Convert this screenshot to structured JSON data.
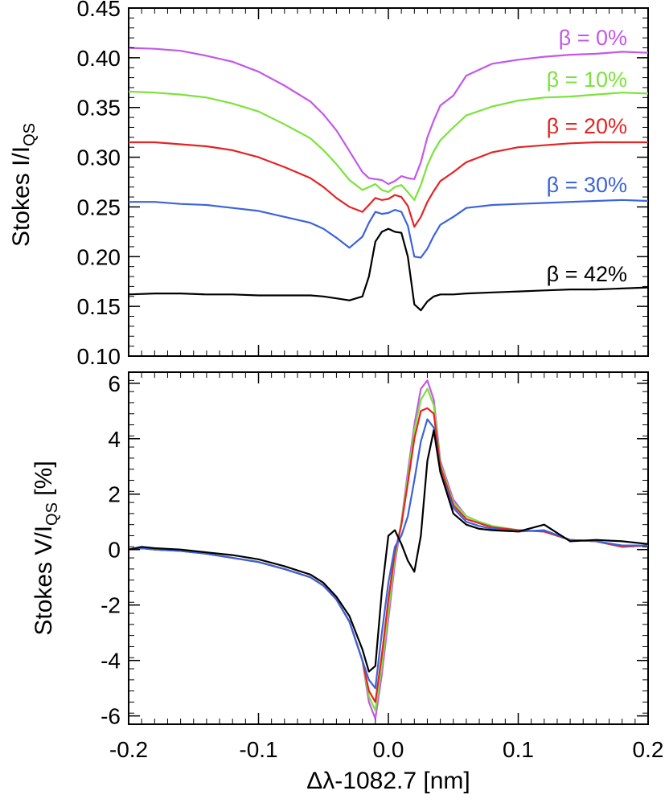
{
  "chart_data": [
    {
      "type": "line",
      "panel": "top",
      "ylabel_main": "Stokes I/I",
      "ylabel_sub": "QS",
      "ylim": [
        0.1,
        0.45
      ],
      "xlim": [
        -0.2,
        0.2
      ],
      "yticks": [
        "0.10",
        "0.15",
        "0.20",
        "0.25",
        "0.30",
        "0.35",
        "0.40",
        "0.45"
      ],
      "yticks_values": [
        0.1,
        0.15,
        0.2,
        0.25,
        0.3,
        0.35,
        0.4,
        0.45
      ],
      "x": [
        -0.2,
        -0.18,
        -0.16,
        -0.14,
        -0.12,
        -0.1,
        -0.08,
        -0.06,
        -0.05,
        -0.04,
        -0.03,
        -0.02,
        -0.015,
        -0.01,
        -0.005,
        0.0,
        0.005,
        0.01,
        0.015,
        0.02,
        0.025,
        0.03,
        0.035,
        0.04,
        0.05,
        0.06,
        0.08,
        0.1,
        0.12,
        0.14,
        0.16,
        0.18,
        0.2
      ],
      "series": [
        {
          "name": "β = 0%",
          "color": "#c457e8",
          "values": [
            0.41,
            0.409,
            0.407,
            0.402,
            0.396,
            0.386,
            0.372,
            0.356,
            0.343,
            0.327,
            0.306,
            0.285,
            0.279,
            0.278,
            0.277,
            0.273,
            0.276,
            0.281,
            0.279,
            0.278,
            0.295,
            0.32,
            0.337,
            0.352,
            0.362,
            0.382,
            0.394,
            0.398,
            0.401,
            0.403,
            0.404,
            0.406,
            0.405
          ]
        },
        {
          "name": "β = 10%",
          "color": "#7be33a",
          "values": [
            0.366,
            0.365,
            0.363,
            0.36,
            0.354,
            0.346,
            0.333,
            0.319,
            0.307,
            0.293,
            0.277,
            0.267,
            0.27,
            0.273,
            0.267,
            0.265,
            0.27,
            0.272,
            0.265,
            0.257,
            0.272,
            0.292,
            0.306,
            0.317,
            0.33,
            0.342,
            0.351,
            0.357,
            0.36,
            0.361,
            0.363,
            0.365,
            0.364
          ]
        },
        {
          "name": "β = 20%",
          "color": "#e52323",
          "values": [
            0.315,
            0.315,
            0.313,
            0.311,
            0.307,
            0.3,
            0.29,
            0.279,
            0.27,
            0.259,
            0.25,
            0.245,
            0.252,
            0.259,
            0.257,
            0.258,
            0.262,
            0.26,
            0.251,
            0.23,
            0.24,
            0.255,
            0.266,
            0.276,
            0.285,
            0.295,
            0.305,
            0.31,
            0.312,
            0.314,
            0.315,
            0.315,
            0.315
          ]
        },
        {
          "name": "β = 30%",
          "color": "#3b63dc",
          "values": [
            0.255,
            0.255,
            0.253,
            0.252,
            0.249,
            0.246,
            0.24,
            0.234,
            0.228,
            0.219,
            0.209,
            0.22,
            0.234,
            0.245,
            0.243,
            0.244,
            0.247,
            0.245,
            0.231,
            0.2,
            0.199,
            0.208,
            0.221,
            0.232,
            0.24,
            0.249,
            0.252,
            0.253,
            0.254,
            0.255,
            0.256,
            0.257,
            0.256
          ]
        },
        {
          "name": "β = 42%",
          "color": "#000000",
          "values": [
            0.162,
            0.163,
            0.163,
            0.162,
            0.162,
            0.161,
            0.161,
            0.161,
            0.16,
            0.158,
            0.156,
            0.16,
            0.18,
            0.215,
            0.225,
            0.228,
            0.225,
            0.224,
            0.2,
            0.152,
            0.146,
            0.155,
            0.16,
            0.162,
            0.162,
            0.163,
            0.164,
            0.165,
            0.166,
            0.167,
            0.167,
            0.168,
            0.169
          ]
        }
      ]
    },
    {
      "type": "line",
      "panel": "bottom",
      "ylabel_main": "Stokes V/I",
      "ylabel_sub": "QS",
      "ylabel_tail": " [%]",
      "ylim": [
        -6.3,
        6.4
      ],
      "xlim": [
        -0.2,
        0.2
      ],
      "yticks": [
        "6",
        "4",
        "2",
        "0",
        "-2",
        "-4",
        "-6"
      ],
      "yticks_values": [
        6,
        4,
        2,
        0,
        -2,
        -4,
        -6
      ],
      "xticks": [
        "-0.2",
        "-0.1",
        "0.0",
        "0.1",
        "0.2"
      ],
      "xticks_values": [
        -0.2,
        -0.1,
        0.0,
        0.1,
        0.2
      ],
      "xlabel": "Δλ-1082.7 [nm]",
      "x": [
        -0.2,
        -0.19,
        -0.18,
        -0.16,
        -0.14,
        -0.12,
        -0.1,
        -0.08,
        -0.06,
        -0.05,
        -0.04,
        -0.03,
        -0.02,
        -0.015,
        -0.01,
        -0.005,
        0.0,
        0.005,
        0.01,
        0.015,
        0.02,
        0.025,
        0.03,
        0.035,
        0.04,
        0.05,
        0.06,
        0.07,
        0.08,
        0.1,
        0.12,
        0.14,
        0.16,
        0.18,
        0.2
      ],
      "series": [
        {
          "name": "β = 0%",
          "color": "#c457e8",
          "values": [
            0.0,
            0.05,
            0.0,
            -0.05,
            -0.15,
            -0.3,
            -0.45,
            -0.7,
            -1.0,
            -1.3,
            -1.8,
            -2.6,
            -4.0,
            -5.5,
            -6.1,
            -4.5,
            -2.5,
            -0.5,
            1.0,
            2.8,
            4.5,
            5.8,
            6.1,
            5.4,
            3.2,
            1.8,
            1.2,
            1.0,
            0.85,
            0.7,
            0.65,
            0.35,
            0.3,
            0.1,
            0.15
          ]
        },
        {
          "name": "β = 10%",
          "color": "#7be33a",
          "values": [
            0.0,
            0.05,
            0.0,
            -0.05,
            -0.15,
            -0.3,
            -0.45,
            -0.7,
            -1.0,
            -1.3,
            -1.8,
            -2.6,
            -4.0,
            -5.3,
            -5.8,
            -4.2,
            -2.2,
            -0.3,
            1.0,
            2.6,
            4.3,
            5.4,
            5.8,
            5.2,
            3.1,
            1.7,
            1.2,
            1.0,
            0.85,
            0.7,
            0.65,
            0.35,
            0.3,
            0.1,
            0.15
          ]
        },
        {
          "name": "β = 20%",
          "color": "#e52323",
          "values": [
            0.0,
            0.05,
            0.0,
            -0.05,
            -0.15,
            -0.3,
            -0.45,
            -0.7,
            -1.0,
            -1.3,
            -1.8,
            -2.6,
            -4.0,
            -5.1,
            -5.5,
            -3.8,
            -1.8,
            -0.1,
            0.9,
            2.4,
            4.0,
            5.0,
            5.1,
            4.9,
            3.0,
            1.6,
            1.1,
            0.95,
            0.8,
            0.7,
            0.65,
            0.35,
            0.3,
            0.1,
            0.15
          ]
        },
        {
          "name": "β = 30%",
          "color": "#3b63dc",
          "values": [
            0.0,
            0.05,
            0.0,
            -0.05,
            -0.15,
            -0.3,
            -0.45,
            -0.7,
            -1.0,
            -1.3,
            -1.8,
            -2.6,
            -4.0,
            -4.7,
            -5.0,
            -3.0,
            -1.2,
            0.1,
            0.5,
            1.2,
            2.5,
            3.9,
            4.7,
            4.4,
            2.8,
            1.5,
            1.0,
            0.85,
            0.75,
            0.65,
            0.7,
            0.35,
            0.3,
            0.15,
            0.15
          ]
        },
        {
          "name": "β = 42%",
          "color": "#000000",
          "values": [
            0.0,
            0.1,
            0.05,
            0.0,
            -0.1,
            -0.2,
            -0.35,
            -0.6,
            -0.9,
            -1.2,
            -1.7,
            -2.4,
            -3.6,
            -4.4,
            -4.2,
            -1.5,
            0.5,
            0.7,
            0.2,
            -0.4,
            -0.8,
            0.5,
            3.2,
            4.3,
            2.8,
            1.3,
            0.9,
            0.75,
            0.7,
            0.65,
            0.9,
            0.3,
            0.35,
            0.3,
            0.2
          ]
        }
      ]
    }
  ]
}
